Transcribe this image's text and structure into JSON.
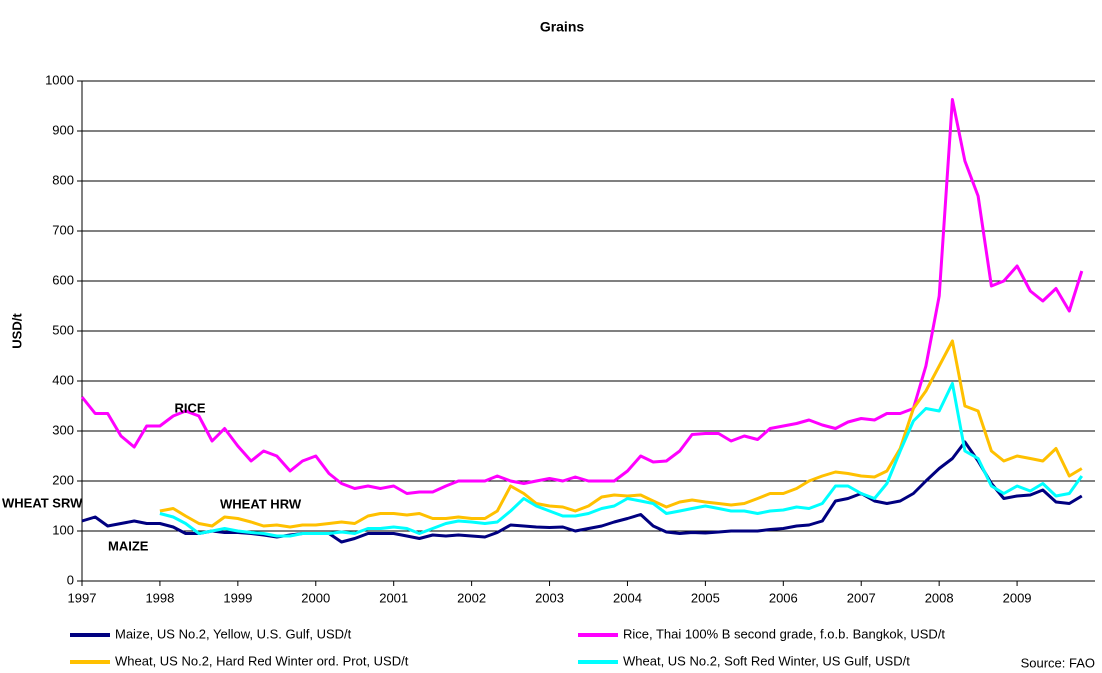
{
  "chart_data": {
    "type": "line",
    "title": "Grains",
    "ylabel": "USD/t",
    "source": "Source: FAO",
    "annotations": [
      "RICE",
      "WHEAT SRW",
      "WHEAT HRW",
      "MAIZE"
    ],
    "xlim": [
      1997,
      2010
    ],
    "xticks": [
      1997,
      1998,
      1999,
      2000,
      2001,
      2002,
      2003,
      2004,
      2005,
      2006,
      2007,
      2008,
      2009
    ],
    "ylim": [
      0,
      1000
    ],
    "yticks": [
      0,
      100,
      200,
      300,
      400,
      500,
      600,
      700,
      800,
      900,
      1000
    ],
    "grid": true,
    "x": [
      1997.0,
      1997.17,
      1997.33,
      1997.5,
      1997.67,
      1997.83,
      1998.0,
      1998.17,
      1998.33,
      1998.5,
      1998.67,
      1998.83,
      1999.0,
      1999.17,
      1999.33,
      1999.5,
      1999.67,
      1999.83,
      2000.0,
      2000.17,
      2000.33,
      2000.5,
      2000.67,
      2000.83,
      2001.0,
      2001.17,
      2001.33,
      2001.5,
      2001.67,
      2001.83,
      2002.0,
      2002.17,
      2002.33,
      2002.5,
      2002.67,
      2002.83,
      2003.0,
      2003.17,
      2003.33,
      2003.5,
      2003.67,
      2003.83,
      2004.0,
      2004.17,
      2004.33,
      2004.5,
      2004.67,
      2004.83,
      2005.0,
      2005.17,
      2005.33,
      2005.5,
      2005.67,
      2005.83,
      2006.0,
      2006.17,
      2006.33,
      2006.5,
      2006.67,
      2006.83,
      2007.0,
      2007.17,
      2007.33,
      2007.5,
      2007.67,
      2007.83,
      2008.0,
      2008.17,
      2008.33,
      2008.5,
      2008.67,
      2008.83,
      2009.0,
      2009.17,
      2009.33,
      2009.5,
      2009.67,
      2009.83
    ],
    "series": [
      {
        "name": "Maize, US No.2, Yellow, U.S. Gulf, USD/t",
        "color": "#000080",
        "values": [
          120,
          128,
          110,
          115,
          120,
          115,
          115,
          108,
          95,
          95,
          100,
          97,
          97,
          95,
          92,
          88,
          92,
          95,
          95,
          95,
          78,
          85,
          95,
          95,
          95,
          90,
          85,
          92,
          90,
          92,
          90,
          88,
          97,
          112,
          110,
          108,
          107,
          108,
          100,
          105,
          110,
          118,
          125,
          133,
          110,
          98,
          95,
          97,
          96,
          98,
          100,
          100,
          100,
          103,
          105,
          110,
          112,
          120,
          160,
          165,
          175,
          160,
          155,
          160,
          175,
          200,
          225,
          245,
          278,
          240,
          195,
          165,
          170,
          172,
          182,
          158,
          155,
          170
        ]
      },
      {
        "name": "Rice, Thai 100% B second grade, f.o.b. Bangkok, USD/t",
        "color": "#ff00ff",
        "values": [
          368,
          335,
          335,
          290,
          268,
          310,
          310,
          330,
          340,
          330,
          280,
          305,
          270,
          240,
          260,
          250,
          220,
          240,
          250,
          215,
          195,
          185,
          190,
          185,
          190,
          175,
          178,
          178,
          190,
          200,
          200,
          200,
          210,
          200,
          195,
          200,
          205,
          200,
          208,
          200,
          200,
          200,
          220,
          250,
          238,
          240,
          260,
          293,
          295,
          295,
          280,
          290,
          283,
          305,
          310,
          315,
          322,
          312,
          305,
          318,
          325,
          322,
          335,
          335,
          345,
          430,
          570,
          963,
          840,
          770,
          590,
          600,
          630,
          580,
          560,
          585,
          540,
          620
        ]
      },
      {
        "name": "Wheat, US No.2, Hard Red Winter ord. Prot, USD/t",
        "color": "#ffc000",
        "values": [
          null,
          null,
          null,
          null,
          null,
          null,
          140,
          145,
          130,
          115,
          110,
          128,
          125,
          118,
          110,
          112,
          108,
          112,
          112,
          115,
          118,
          115,
          130,
          135,
          135,
          132,
          135,
          125,
          125,
          128,
          125,
          125,
          140,
          190,
          175,
          155,
          150,
          148,
          140,
          150,
          168,
          172,
          170,
          172,
          160,
          148,
          158,
          162,
          158,
          155,
          152,
          155,
          165,
          175,
          175,
          185,
          200,
          210,
          218,
          215,
          210,
          208,
          220,
          265,
          345,
          380,
          430,
          480,
          350,
          340,
          260,
          240,
          250,
          245,
          240,
          265,
          210,
          225
        ]
      },
      {
        "name": "Wheat, US No.2, Soft Red Winter, US Gulf, USD/t",
        "color": "#00ffff",
        "values": [
          null,
          null,
          null,
          null,
          null,
          null,
          135,
          128,
          115,
          95,
          100,
          105,
          100,
          97,
          95,
          90,
          90,
          95,
          95,
          95,
          98,
          95,
          105,
          105,
          108,
          105,
          95,
          105,
          115,
          120,
          118,
          115,
          118,
          140,
          165,
          150,
          140,
          130,
          130,
          135,
          145,
          150,
          165,
          160,
          155,
          135,
          140,
          145,
          150,
          145,
          140,
          140,
          135,
          140,
          142,
          148,
          145,
          155,
          190,
          190,
          175,
          165,
          195,
          260,
          320,
          345,
          340,
          395,
          260,
          245,
          190,
          175,
          190,
          180,
          195,
          170,
          175,
          210
        ]
      }
    ]
  }
}
